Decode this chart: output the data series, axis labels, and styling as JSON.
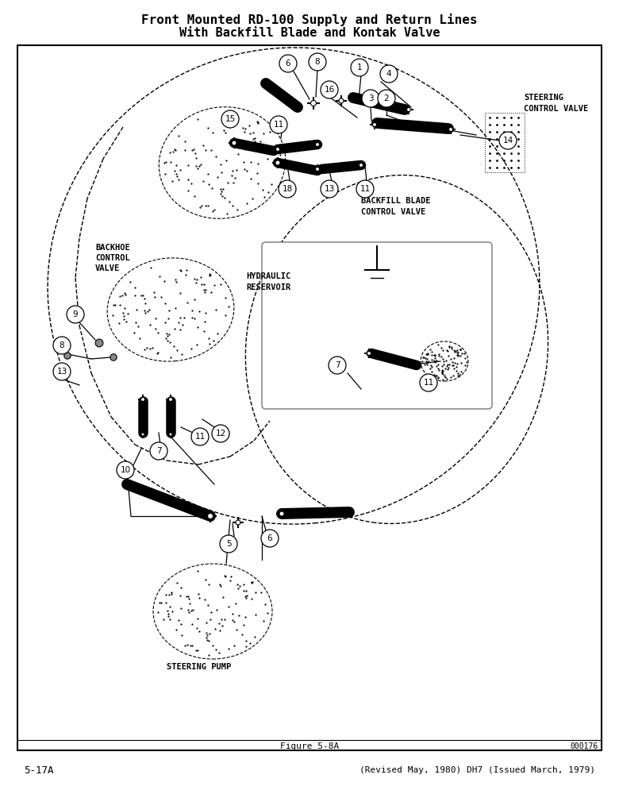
{
  "title_line1": "Front Mounted RD-100 Supply and Return Lines",
  "title_line2": "With Backfill Blade and Kontak Valve",
  "figure_label": "Figure 5-8A",
  "figure_number": "000176",
  "page_left": "5-17A",
  "page_right": "(Revised May, 1980) DH7 (Issued March, 1979)",
  "labels": {
    "steering_control_valve": "STEERING\nCONTROL VALVE",
    "backfill_blade_control_valve": "BACKFILL BLADE\nCONTROL VALVE",
    "backhoe_control_valve": "BACKHOE\nCONTROL\nVALVE",
    "hydraulic_reservoir": "HYDRAULIC\nRESERVOIR",
    "steering_pump": "STEERING PUMP"
  }
}
